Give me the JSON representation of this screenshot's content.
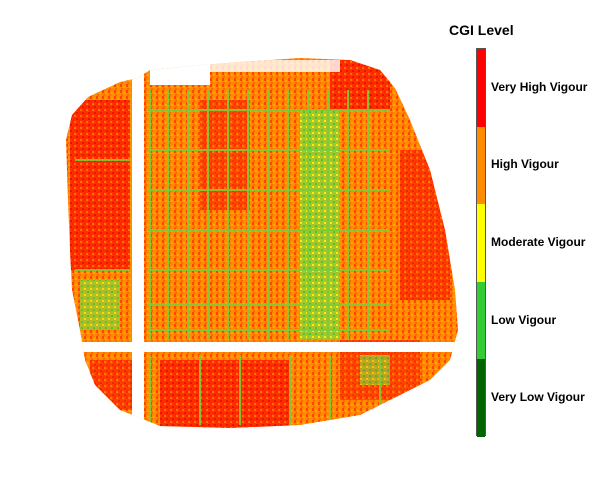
{
  "map": {
    "description_colors": {
      "very_high": "#ff0000",
      "high": "#ff8c00",
      "moderate": "#ffff00",
      "low": "#32cd32",
      "very_low": "#006400"
    }
  },
  "legend": {
    "title": "CGI Level",
    "classes": [
      {
        "label": "Very High Vigour",
        "color": "#ff0000"
      },
      {
        "label": "High Vigour",
        "color": "#ff8c00"
      },
      {
        "label": "Moderate Vigour",
        "color": "#ffff00"
      },
      {
        "label": "Low Vigour",
        "color": "#32cd32"
      },
      {
        "label": "Very Low Vigour",
        "color": "#006400"
      }
    ]
  }
}
